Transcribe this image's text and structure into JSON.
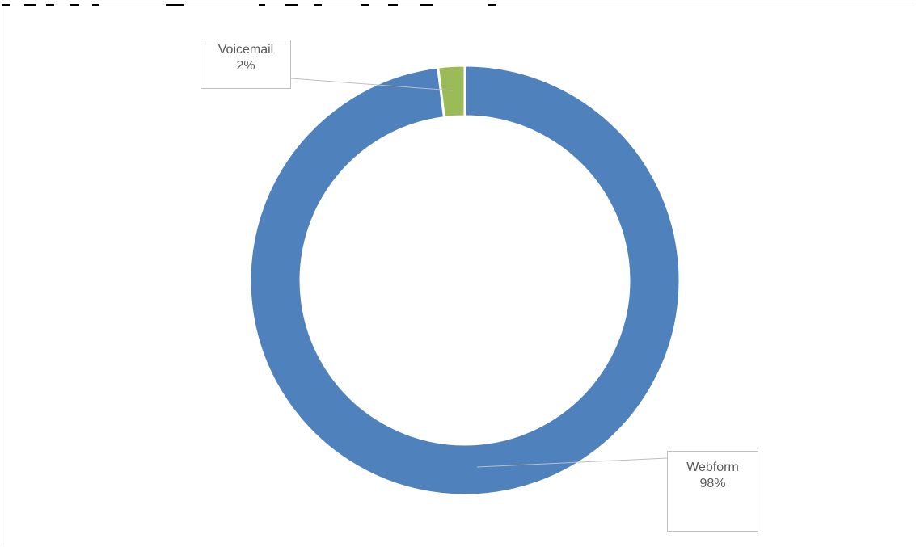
{
  "chart_data": {
    "type": "donut",
    "title": "",
    "categories": [
      "Voicemail",
      "Webform"
    ],
    "values": [
      2,
      98
    ],
    "unit": "%",
    "slices": [
      {
        "name": "Voicemail",
        "value": 2,
        "label": "2%",
        "color": "#9bbb59"
      },
      {
        "name": "Webform",
        "value": 98,
        "label": "98%",
        "color": "#4f81bd"
      }
    ],
    "start_angle_deg": 0,
    "direction": "clockwise",
    "legend": "none",
    "data_labels": "callout"
  }
}
